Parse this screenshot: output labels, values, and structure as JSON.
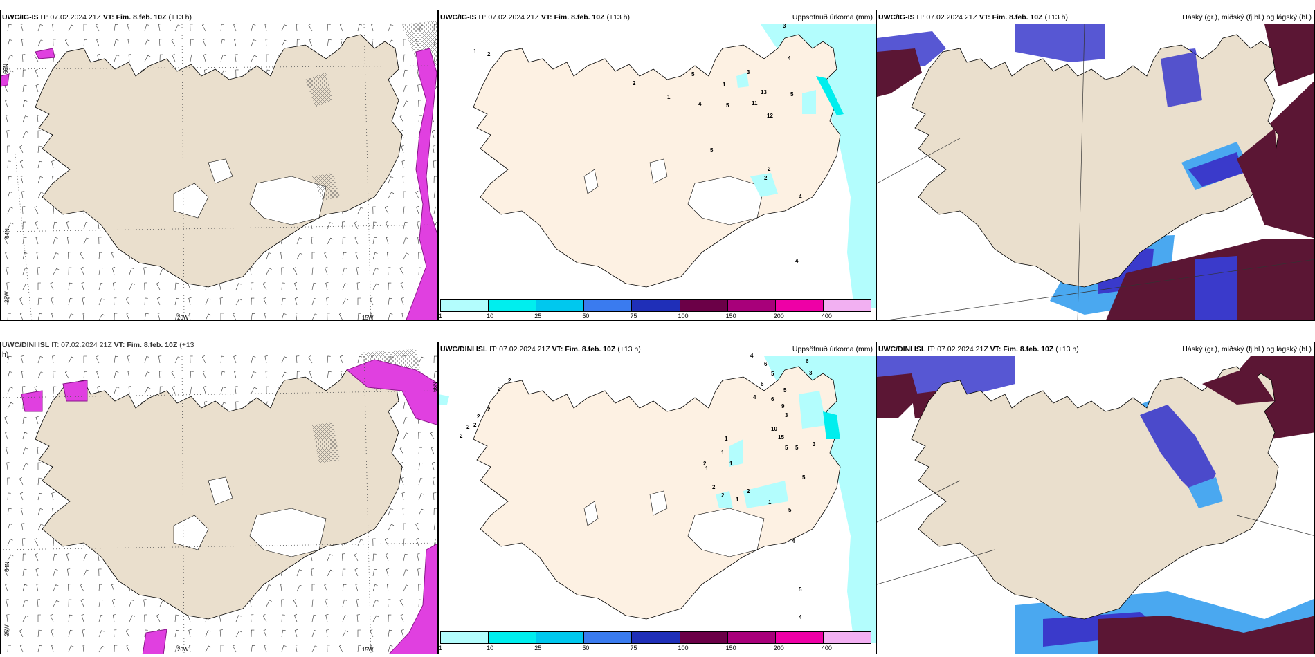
{
  "panels": {
    "p1": {
      "model": "UWC/IG-IS",
      "it": "IT: 07.02.2024 21Z",
      "vt_label": "VT:",
      "vt": "Fim. 8.feb. 10Z",
      "lead": "(+13 h)"
    },
    "p2": {
      "model": "UWC/IG-IS",
      "it": "IT: 07.02.2024 21Z",
      "vt_label": "VT:",
      "vt": "Fim. 8.feb. 10Z",
      "lead": "(+13 h)",
      "right": "Uppsöfnuð úrkoma (mm)"
    },
    "p3": {
      "model": "UWC/IG-IS",
      "it": "IT: 07.02.2024 21Z",
      "vt_label": "VT:",
      "vt": "Fim. 8.feb. 10Z",
      "lead": "(+13 h)",
      "right": "Háský (gr.), miðský (fj.bl.) og lágský (bl.)"
    },
    "p4": {
      "model": "UWC/DINI ISL",
      "it": "IT: 07.02.2024 21Z",
      "vt_label": "VT:",
      "vt": "Fim. 8.feb. 10Z",
      "lead": "(+13",
      "wrap": "h)"
    },
    "p5": {
      "model": "UWC/DINI ISL",
      "it": "IT: 07.02.2024 21Z",
      "vt_label": "VT:",
      "vt": "Fim. 8.feb. 10Z",
      "lead": "(+13 h)",
      "right": "Uppsöfnuð úrkoma (mm)"
    },
    "p6": {
      "model": "UWC/DINI ISL",
      "it": "IT: 07.02.2024 21Z",
      "vt_label": "VT:",
      "vt": "Fim. 8.feb. 10Z",
      "lead": "(+13 h)",
      "right": "Háský (gr.), miðský (fj.bl.) og lágský (bl.)"
    }
  },
  "axes": {
    "lon_20w": "20W",
    "lon_15w": "15W",
    "lon_25w": "25W",
    "lat_64n": "64N",
    "lat_66n": "66N"
  },
  "colorbar": {
    "labels": [
      "1",
      "10",
      "25",
      "50",
      "75",
      "100",
      "150",
      "200",
      "400"
    ],
    "colors": [
      "#b3fdfd",
      "#00eeee",
      "#00c8ee",
      "#3a7bef",
      "#1f2fb8",
      "#6b0047",
      "#a8007a",
      "#ee00a6",
      "#f2b0f2"
    ]
  },
  "precip_numbers_top": [
    "1",
    "2",
    "2",
    "1",
    "1",
    "5",
    "4",
    "5",
    "3",
    "13",
    "11",
    "12",
    "3",
    "4",
    "5",
    "2",
    "2",
    "5",
    "4",
    "4"
  ],
  "precip_numbers_bottom": [
    "2",
    "2",
    "2",
    "2",
    "2",
    "2",
    "2",
    "1",
    "1",
    "2",
    "1",
    "1",
    "2",
    "2",
    "1",
    "2",
    "1",
    "4",
    "6",
    "5",
    "6",
    "5",
    "6",
    "4",
    "9",
    "3",
    "10",
    "15",
    "5",
    "5",
    "3",
    "5",
    "5",
    "4",
    "5",
    "4",
    "6",
    "3"
  ],
  "colors": {
    "land": "#eadfcd",
    "land2": "#fdf1e3",
    "sea": "#ffffff",
    "precip": "#b3fdfd",
    "icing": "#e040e0",
    "cloud_high": "#5b1634",
    "cloud_mid": "#3a3acb",
    "cloud_low": "#4aa8f0"
  }
}
